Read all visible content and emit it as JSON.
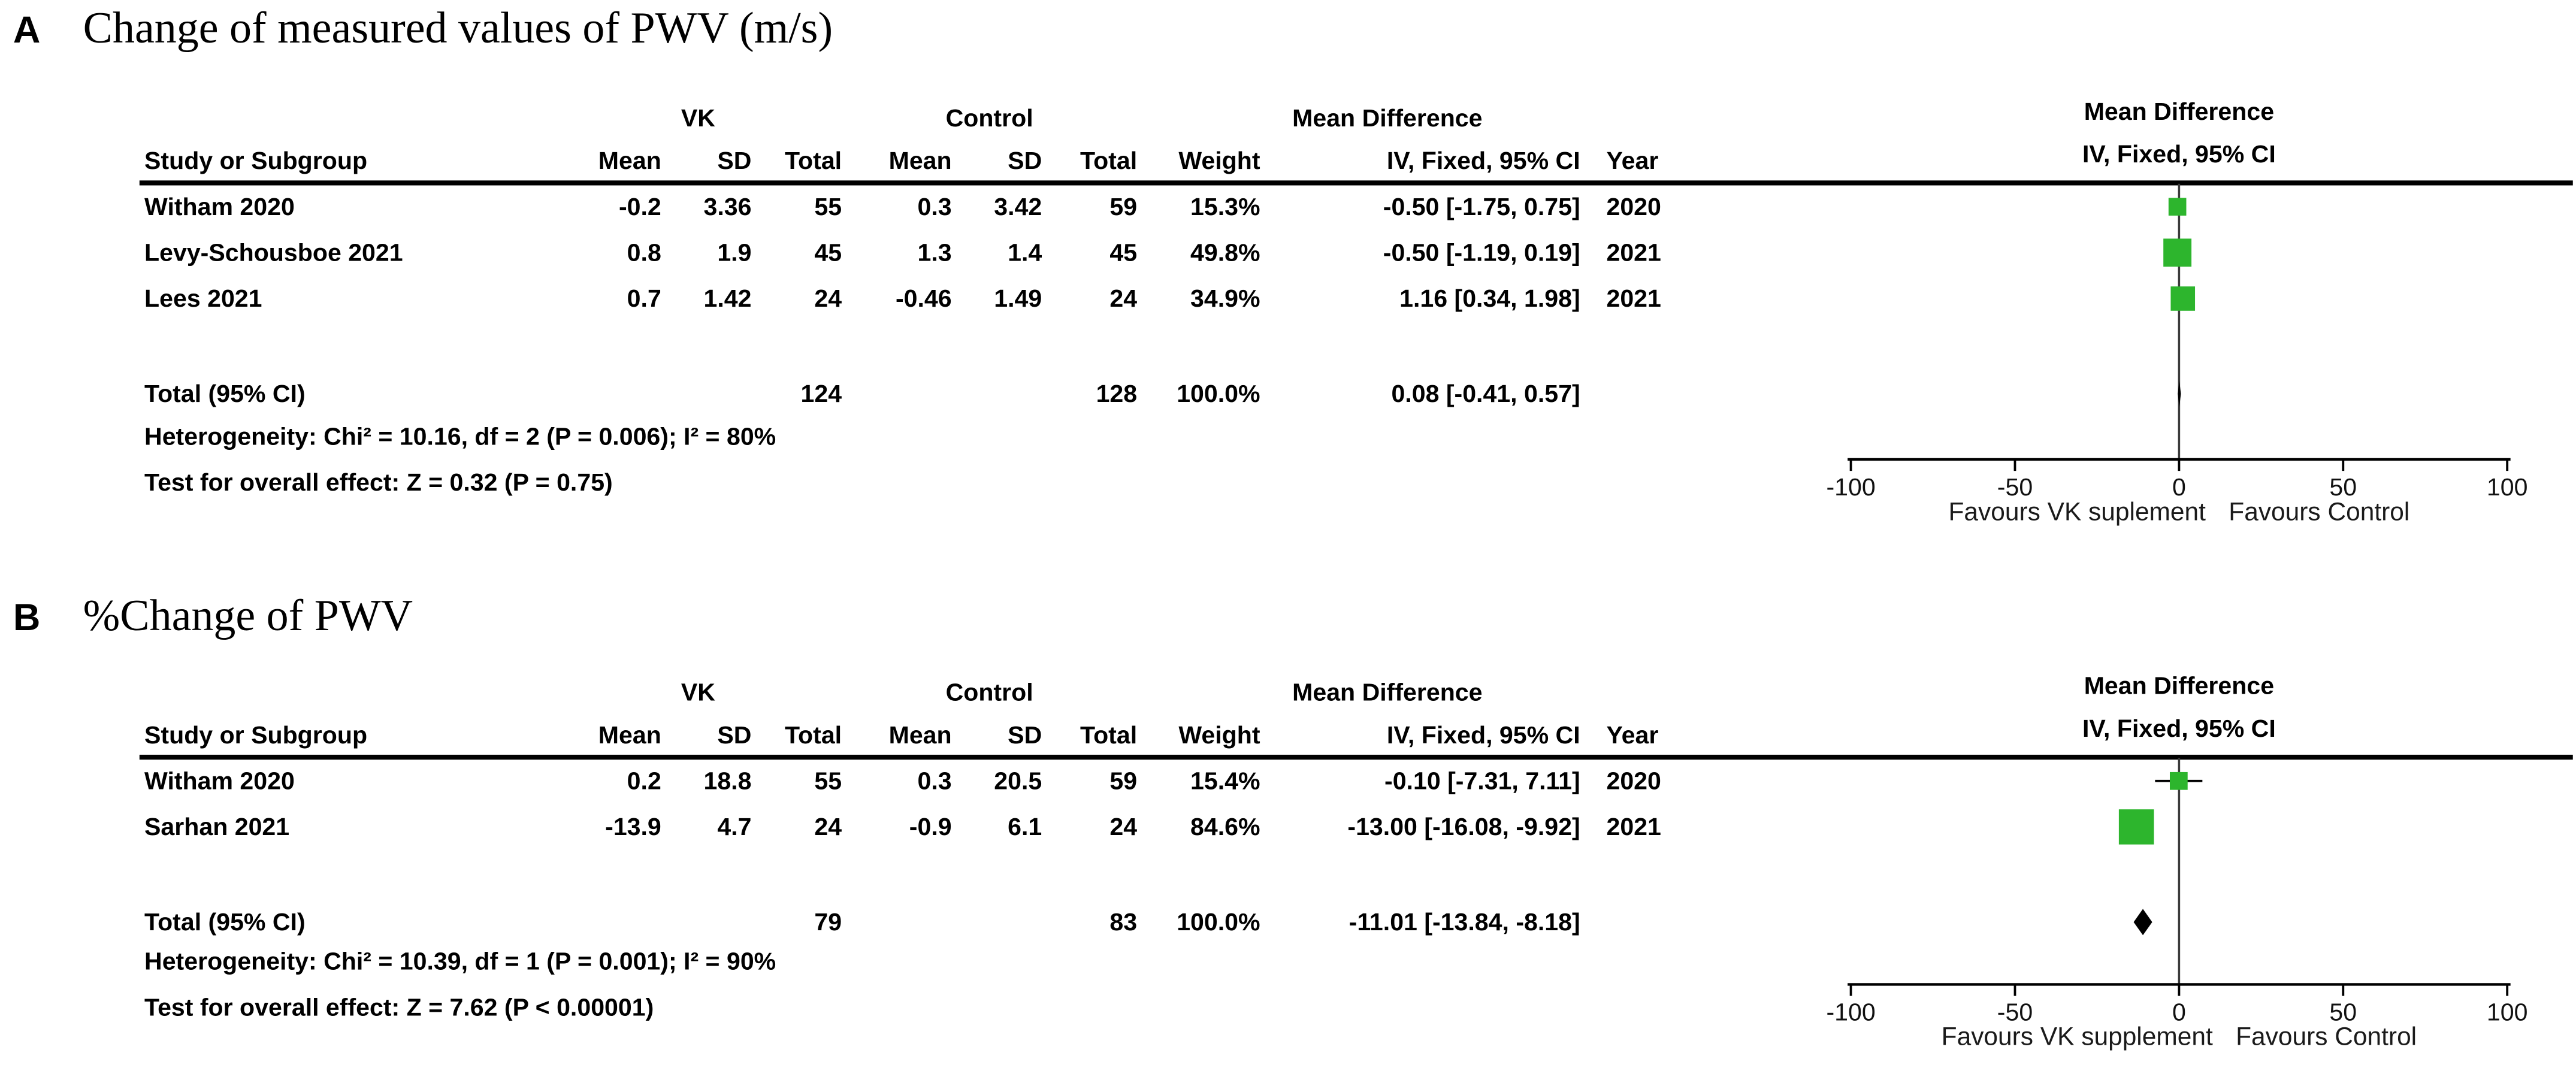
{
  "colors": {
    "square": "#2db52d",
    "diamond": "#000000",
    "line": "#000000"
  },
  "chart_data": [
    {
      "type": "forest",
      "panel_label": "A",
      "title": "Change of measured values of PWV (m/s)",
      "group_headers": {
        "group1": "VK",
        "group2": "Control",
        "md": "Mean Difference",
        "md_plot": "Mean Difference"
      },
      "col_headers": {
        "study": "Study or Subgroup",
        "mean1": "Mean",
        "sd1": "SD",
        "total1": "Total",
        "mean2": "Mean",
        "sd2": "SD",
        "total2": "Total",
        "weight": "Weight",
        "iv": "IV, Fixed, 95% CI",
        "year": "Year",
        "iv_plot": "IV, Fixed, 95% CI"
      },
      "studies": [
        {
          "name": "Witham 2020",
          "mean1": "-0.2",
          "sd1": "3.36",
          "n1": "55",
          "mean2": "0.3",
          "sd2": "3.42",
          "n2": "59",
          "weight_label": "15.3%",
          "weight": 15.3,
          "ci_label": "-0.50 [-1.75, 0.75]",
          "year": "2020",
          "est": -0.5,
          "lo": -1.75,
          "hi": 0.75
        },
        {
          "name": "Levy-Schousboe 2021",
          "mean1": "0.8",
          "sd1": "1.9",
          "n1": "45",
          "mean2": "1.3",
          "sd2": "1.4",
          "n2": "45",
          "weight_label": "49.8%",
          "weight": 49.8,
          "ci_label": "-0.50 [-1.19, 0.19]",
          "year": "2021",
          "est": -0.5,
          "lo": -1.19,
          "hi": 0.19
        },
        {
          "name": "Lees 2021",
          "mean1": "0.7",
          "sd1": "1.42",
          "n1": "24",
          "mean2": "-0.46",
          "sd2": "1.49",
          "n2": "24",
          "weight_label": "34.9%",
          "weight": 34.9,
          "ci_label": "1.16 [0.34, 1.98]",
          "year": "2021",
          "est": 1.16,
          "lo": 0.34,
          "hi": 1.98
        }
      ],
      "total": {
        "name": "Total (95% CI)",
        "n1": "124",
        "n2": "128",
        "weight_label": "100.0%",
        "ci_label": "0.08 [-0.41, 0.57]",
        "est": 0.08,
        "lo": -0.41,
        "hi": 0.57
      },
      "heterogeneity": "Heterogeneity: Chi² = 10.16, df = 2 (P = 0.006); I² = 80%",
      "overall_effect": "Test for overall effect: Z = 0.32 (P = 0.75)",
      "axis": {
        "min": -100,
        "max": 100,
        "ticks": [
          -100,
          -50,
          0,
          50,
          100
        ]
      },
      "favours_left": "Favours VK suplement",
      "favours_right": "Favours Control"
    },
    {
      "type": "forest",
      "panel_label": "B",
      "title": "%Change of PWV",
      "group_headers": {
        "group1": "VK",
        "group2": "Control",
        "md": "Mean Difference",
        "md_plot": "Mean Difference"
      },
      "col_headers": {
        "study": "Study or Subgroup",
        "mean1": "Mean",
        "sd1": "SD",
        "total1": "Total",
        "mean2": "Mean",
        "sd2": "SD",
        "total2": "Total",
        "weight": "Weight",
        "iv": "IV, Fixed, 95% CI",
        "year": "Year",
        "iv_plot": "IV, Fixed, 95% CI"
      },
      "studies": [
        {
          "name": "Witham 2020",
          "mean1": "0.2",
          "sd1": "18.8",
          "n1": "55",
          "mean2": "0.3",
          "sd2": "20.5",
          "n2": "59",
          "weight_label": "15.4%",
          "weight": 15.4,
          "ci_label": "-0.10 [-7.31, 7.11]",
          "year": "2020",
          "est": -0.1,
          "lo": -7.31,
          "hi": 7.11
        },
        {
          "name": "Sarhan 2021",
          "mean1": "-13.9",
          "sd1": "4.7",
          "n1": "24",
          "mean2": "-0.9",
          "sd2": "6.1",
          "n2": "24",
          "weight_label": "84.6%",
          "weight": 84.6,
          "ci_label": "-13.00 [-16.08, -9.92]",
          "year": "2021",
          "est": -13.0,
          "lo": -16.08,
          "hi": -9.92
        }
      ],
      "total": {
        "name": "Total (95% CI)",
        "n1": "79",
        "n2": "83",
        "weight_label": "100.0%",
        "ci_label": "-11.01 [-13.84, -8.18]",
        "est": -11.01,
        "lo": -13.84,
        "hi": -8.18
      },
      "heterogeneity": "Heterogeneity: Chi² = 10.39, df = 1 (P = 0.001); I² = 90%",
      "overall_effect": "Test for overall effect: Z = 7.62 (P < 0.00001)",
      "axis": {
        "min": -100,
        "max": 100,
        "ticks": [
          -100,
          -50,
          0,
          50,
          100
        ]
      },
      "favours_left": "Favours VK supplement",
      "favours_right": "Favours Control"
    }
  ]
}
